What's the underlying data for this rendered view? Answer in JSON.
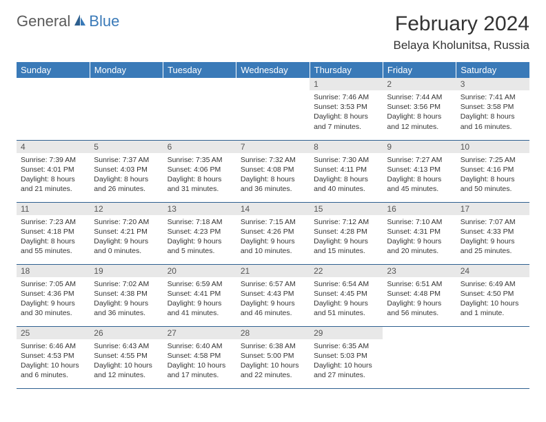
{
  "logo": {
    "part1": "General",
    "part2": "Blue"
  },
  "title": "February 2024",
  "location": "Belaya Kholunitsa, Russia",
  "colors": {
    "header_bg": "#3a7ab8",
    "header_text": "#ffffff",
    "daynum_bg": "#e8e8e8",
    "daynum_text": "#555555",
    "border": "#2d5f8f",
    "logo_gray": "#5a5a5a",
    "logo_blue": "#3a7ab8",
    "body_text": "#333333",
    "background": "#ffffff"
  },
  "typography": {
    "title_fontsize": 30,
    "location_fontsize": 17,
    "header_fontsize": 13,
    "daynum_fontsize": 12,
    "cell_fontsize": 10.5
  },
  "weekdays": [
    "Sunday",
    "Monday",
    "Tuesday",
    "Wednesday",
    "Thursday",
    "Friday",
    "Saturday"
  ],
  "weeks": [
    [
      null,
      null,
      null,
      null,
      {
        "n": "1",
        "sr": "Sunrise: 7:46 AM",
        "ss": "Sunset: 3:53 PM",
        "dl1": "Daylight: 8 hours",
        "dl2": "and 7 minutes."
      },
      {
        "n": "2",
        "sr": "Sunrise: 7:44 AM",
        "ss": "Sunset: 3:56 PM",
        "dl1": "Daylight: 8 hours",
        "dl2": "and 12 minutes."
      },
      {
        "n": "3",
        "sr": "Sunrise: 7:41 AM",
        "ss": "Sunset: 3:58 PM",
        "dl1": "Daylight: 8 hours",
        "dl2": "and 16 minutes."
      }
    ],
    [
      {
        "n": "4",
        "sr": "Sunrise: 7:39 AM",
        "ss": "Sunset: 4:01 PM",
        "dl1": "Daylight: 8 hours",
        "dl2": "and 21 minutes."
      },
      {
        "n": "5",
        "sr": "Sunrise: 7:37 AM",
        "ss": "Sunset: 4:03 PM",
        "dl1": "Daylight: 8 hours",
        "dl2": "and 26 minutes."
      },
      {
        "n": "6",
        "sr": "Sunrise: 7:35 AM",
        "ss": "Sunset: 4:06 PM",
        "dl1": "Daylight: 8 hours",
        "dl2": "and 31 minutes."
      },
      {
        "n": "7",
        "sr": "Sunrise: 7:32 AM",
        "ss": "Sunset: 4:08 PM",
        "dl1": "Daylight: 8 hours",
        "dl2": "and 36 minutes."
      },
      {
        "n": "8",
        "sr": "Sunrise: 7:30 AM",
        "ss": "Sunset: 4:11 PM",
        "dl1": "Daylight: 8 hours",
        "dl2": "and 40 minutes."
      },
      {
        "n": "9",
        "sr": "Sunrise: 7:27 AM",
        "ss": "Sunset: 4:13 PM",
        "dl1": "Daylight: 8 hours",
        "dl2": "and 45 minutes."
      },
      {
        "n": "10",
        "sr": "Sunrise: 7:25 AM",
        "ss": "Sunset: 4:16 PM",
        "dl1": "Daylight: 8 hours",
        "dl2": "and 50 minutes."
      }
    ],
    [
      {
        "n": "11",
        "sr": "Sunrise: 7:23 AM",
        "ss": "Sunset: 4:18 PM",
        "dl1": "Daylight: 8 hours",
        "dl2": "and 55 minutes."
      },
      {
        "n": "12",
        "sr": "Sunrise: 7:20 AM",
        "ss": "Sunset: 4:21 PM",
        "dl1": "Daylight: 9 hours",
        "dl2": "and 0 minutes."
      },
      {
        "n": "13",
        "sr": "Sunrise: 7:18 AM",
        "ss": "Sunset: 4:23 PM",
        "dl1": "Daylight: 9 hours",
        "dl2": "and 5 minutes."
      },
      {
        "n": "14",
        "sr": "Sunrise: 7:15 AM",
        "ss": "Sunset: 4:26 PM",
        "dl1": "Daylight: 9 hours",
        "dl2": "and 10 minutes."
      },
      {
        "n": "15",
        "sr": "Sunrise: 7:12 AM",
        "ss": "Sunset: 4:28 PM",
        "dl1": "Daylight: 9 hours",
        "dl2": "and 15 minutes."
      },
      {
        "n": "16",
        "sr": "Sunrise: 7:10 AM",
        "ss": "Sunset: 4:31 PM",
        "dl1": "Daylight: 9 hours",
        "dl2": "and 20 minutes."
      },
      {
        "n": "17",
        "sr": "Sunrise: 7:07 AM",
        "ss": "Sunset: 4:33 PM",
        "dl1": "Daylight: 9 hours",
        "dl2": "and 25 minutes."
      }
    ],
    [
      {
        "n": "18",
        "sr": "Sunrise: 7:05 AM",
        "ss": "Sunset: 4:36 PM",
        "dl1": "Daylight: 9 hours",
        "dl2": "and 30 minutes."
      },
      {
        "n": "19",
        "sr": "Sunrise: 7:02 AM",
        "ss": "Sunset: 4:38 PM",
        "dl1": "Daylight: 9 hours",
        "dl2": "and 36 minutes."
      },
      {
        "n": "20",
        "sr": "Sunrise: 6:59 AM",
        "ss": "Sunset: 4:41 PM",
        "dl1": "Daylight: 9 hours",
        "dl2": "and 41 minutes."
      },
      {
        "n": "21",
        "sr": "Sunrise: 6:57 AM",
        "ss": "Sunset: 4:43 PM",
        "dl1": "Daylight: 9 hours",
        "dl2": "and 46 minutes."
      },
      {
        "n": "22",
        "sr": "Sunrise: 6:54 AM",
        "ss": "Sunset: 4:45 PM",
        "dl1": "Daylight: 9 hours",
        "dl2": "and 51 minutes."
      },
      {
        "n": "23",
        "sr": "Sunrise: 6:51 AM",
        "ss": "Sunset: 4:48 PM",
        "dl1": "Daylight: 9 hours",
        "dl2": "and 56 minutes."
      },
      {
        "n": "24",
        "sr": "Sunrise: 6:49 AM",
        "ss": "Sunset: 4:50 PM",
        "dl1": "Daylight: 10 hours",
        "dl2": "and 1 minute."
      }
    ],
    [
      {
        "n": "25",
        "sr": "Sunrise: 6:46 AM",
        "ss": "Sunset: 4:53 PM",
        "dl1": "Daylight: 10 hours",
        "dl2": "and 6 minutes."
      },
      {
        "n": "26",
        "sr": "Sunrise: 6:43 AM",
        "ss": "Sunset: 4:55 PM",
        "dl1": "Daylight: 10 hours",
        "dl2": "and 12 minutes."
      },
      {
        "n": "27",
        "sr": "Sunrise: 6:40 AM",
        "ss": "Sunset: 4:58 PM",
        "dl1": "Daylight: 10 hours",
        "dl2": "and 17 minutes."
      },
      {
        "n": "28",
        "sr": "Sunrise: 6:38 AM",
        "ss": "Sunset: 5:00 PM",
        "dl1": "Daylight: 10 hours",
        "dl2": "and 22 minutes."
      },
      {
        "n": "29",
        "sr": "Sunrise: 6:35 AM",
        "ss": "Sunset: 5:03 PM",
        "dl1": "Daylight: 10 hours",
        "dl2": "and 27 minutes."
      },
      null,
      null
    ]
  ]
}
